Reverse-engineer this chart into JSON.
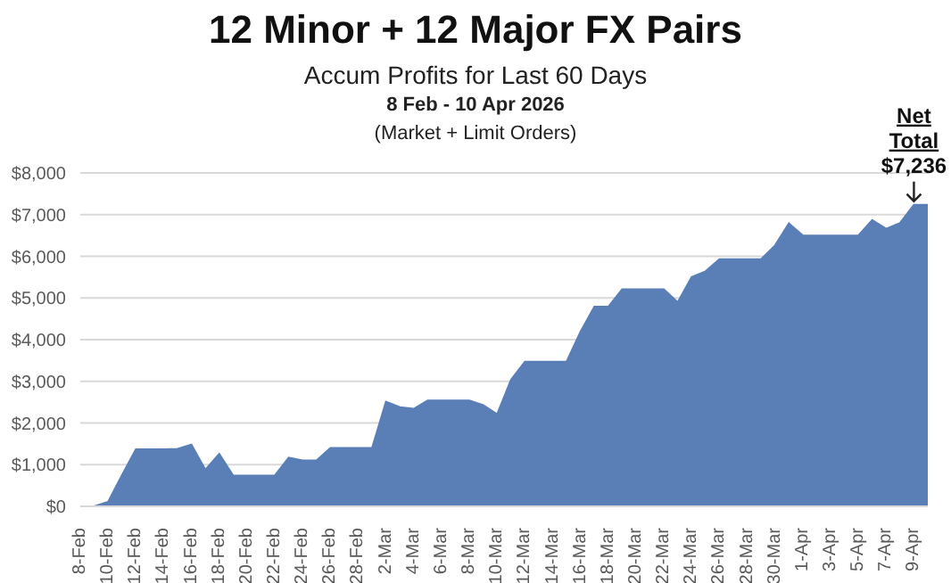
{
  "chart_data": {
    "type": "area",
    "title": "12 Minor + 12 Major FX Pairs",
    "subtitle": "Accum Profits for Last 60 Days",
    "annotations": [
      "8 Feb  - 10 Apr 2026",
      "(Market + Limit Orders)",
      {
        "text": "Net\nTotal\n$7,236",
        "x": "9-Apr",
        "y": 7236
      }
    ],
    "categories": [
      "8-Feb",
      null,
      "10-Feb",
      null,
      "12-Feb",
      null,
      "14-Feb",
      null,
      "16-Feb",
      null,
      "18-Feb",
      null,
      "20-Feb",
      null,
      "22-Feb",
      null,
      "24-Feb",
      null,
      "26-Feb",
      null,
      "28-Feb",
      null,
      "2-Mar",
      null,
      "4-Mar",
      null,
      "6-Mar",
      null,
      "8-Mar",
      null,
      "10-Mar",
      null,
      "12-Mar",
      null,
      "14-Mar",
      null,
      "16-Mar",
      null,
      "18-Mar",
      null,
      "20-Mar",
      null,
      "22-Mar",
      null,
      "24-Mar",
      null,
      "26-Mar",
      null,
      "28-Mar",
      null,
      "30-Mar",
      null,
      "1-Apr",
      null,
      "3-Apr",
      null,
      "5-Apr",
      null,
      "7-Apr",
      null,
      "9-Apr",
      null
    ],
    "series": [
      {
        "color": "#5a7fb7",
        "values": [
          0,
          0,
          110,
          750,
          1370,
          1370,
          1370,
          1380,
          1480,
          880,
          1260,
          740,
          740,
          740,
          740,
          1170,
          1100,
          1100,
          1400,
          1400,
          1400,
          1400,
          2510,
          2380,
          2340,
          2540,
          2540,
          2540,
          2540,
          2430,
          2210,
          3040,
          3470,
          3470,
          3470,
          3470,
          4190,
          4790,
          4790,
          5210,
          5210,
          5210,
          5210,
          4900,
          5500,
          5640,
          5930,
          5930,
          5930,
          5930,
          6260,
          6790,
          6500,
          6500,
          6500,
          6500,
          6500,
          6870,
          6660,
          6800,
          7236,
          7236
        ]
      }
    ],
    "ylim": [
      0,
      8000
    ],
    "yticks": [
      {
        "value": 0,
        "label": "$0"
      },
      {
        "value": 1000,
        "label": "$1,000"
      },
      {
        "value": 2000,
        "label": "$2,000"
      },
      {
        "value": 3000,
        "label": "$3,000"
      },
      {
        "value": 4000,
        "label": "$4,000"
      },
      {
        "value": 5000,
        "label": "$5,000"
      },
      {
        "value": 6000,
        "label": "$6,000"
      },
      {
        "value": 7000,
        "label": "$7,000"
      },
      {
        "value": 8000,
        "label": "$8,000"
      }
    ],
    "grid": "y",
    "legend": false
  }
}
